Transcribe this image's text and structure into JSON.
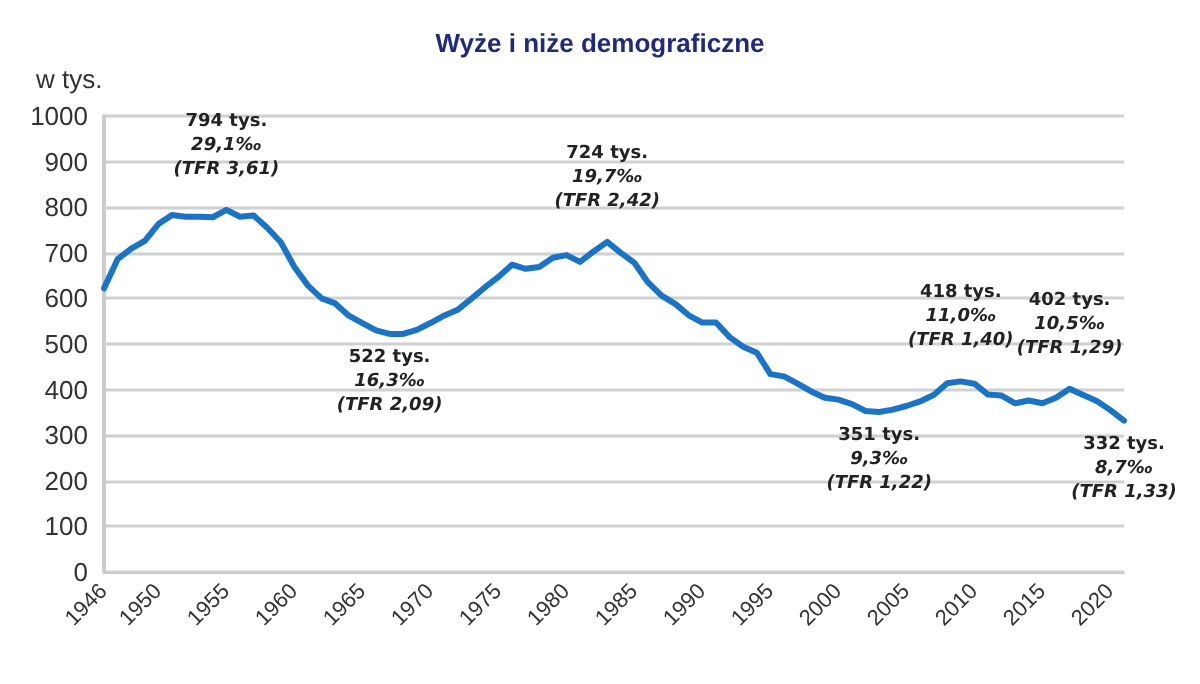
{
  "chart_data": {
    "type": "line",
    "title": "Wyże i niże demograficzne",
    "ylabel": "w tys.",
    "x": [
      1946,
      1947,
      1948,
      1949,
      1950,
      1951,
      1952,
      1953,
      1954,
      1955,
      1956,
      1957,
      1958,
      1959,
      1960,
      1961,
      1962,
      1963,
      1964,
      1965,
      1966,
      1967,
      1968,
      1969,
      1970,
      1971,
      1972,
      1973,
      1974,
      1975,
      1976,
      1977,
      1978,
      1979,
      1980,
      1981,
      1982,
      1983,
      1984,
      1985,
      1986,
      1987,
      1988,
      1989,
      1990,
      1991,
      1992,
      1993,
      1994,
      1995,
      1996,
      1997,
      1998,
      1999,
      2000,
      2001,
      2002,
      2003,
      2004,
      2005,
      2006,
      2007,
      2008,
      2009,
      2010,
      2011,
      2012,
      2013,
      2014,
      2015,
      2016,
      2017,
      2018,
      2019,
      2020,
      2021
    ],
    "series": [
      {
        "color": "#1a73c5",
        "values": [
          622,
          686,
          709,
          726,
          763,
          783,
          779,
          779,
          778,
          794,
          779,
          782,
          755,
          723,
          669,
          628,
          600,
          589,
          562,
          546,
          530,
          522,
          522,
          531,
          546,
          562,
          575,
          599,
          624,
          647,
          674,
          665,
          669,
          689,
          695,
          680,
          703,
          724,
          700,
          678,
          635,
          606,
          588,
          563,
          547,
          547,
          515,
          494,
          481,
          434,
          429,
          413,
          396,
          382,
          378,
          368,
          353,
          351,
          356,
          364,
          374,
          388,
          414,
          418,
          413,
          389,
          387,
          370,
          376,
          370,
          382,
          402,
          388,
          375,
          355,
          332
        ]
      }
    ],
    "xlim": [
      1946,
      2021
    ],
    "xticks": [
      1946,
      1950,
      1955,
      1960,
      1965,
      1970,
      1975,
      1980,
      1985,
      1990,
      1995,
      2000,
      2005,
      2010,
      2015,
      2020
    ],
    "ylim": [
      0,
      1000
    ],
    "yticks": [
      0,
      100,
      200,
      300,
      400,
      500,
      600,
      700,
      800,
      900,
      1000
    ],
    "grid": "y",
    "marker": "none",
    "line_style": "solid",
    "annotations": [
      {
        "text": "794 tys.\n29,1‰\n(TFR 3,61)",
        "x": 1955,
        "y": 794
      },
      {
        "text": "522 tys.\n16,3‰\n(TFR 2,09)",
        "x": 1967,
        "y": 522
      },
      {
        "text": "724 tys.\n19,7‰\n(TFR 2,42)",
        "x": 1983,
        "y": 724
      },
      {
        "text": "351 tys.\n9,3‰\n(TFR 1,22)",
        "x": 2003,
        "y": 351
      },
      {
        "text": "418 tys.\n11,0‰\n(TFR 1,40)",
        "x": 2009,
        "y": 418
      },
      {
        "text": "402 tys.\n10,5‰\n(TFR 1,29)",
        "x": 2017,
        "y": 402
      },
      {
        "text": "332 tys.\n8,7‰\n(TFR 1,33)",
        "x": 2021,
        "y": 332
      }
    ]
  }
}
